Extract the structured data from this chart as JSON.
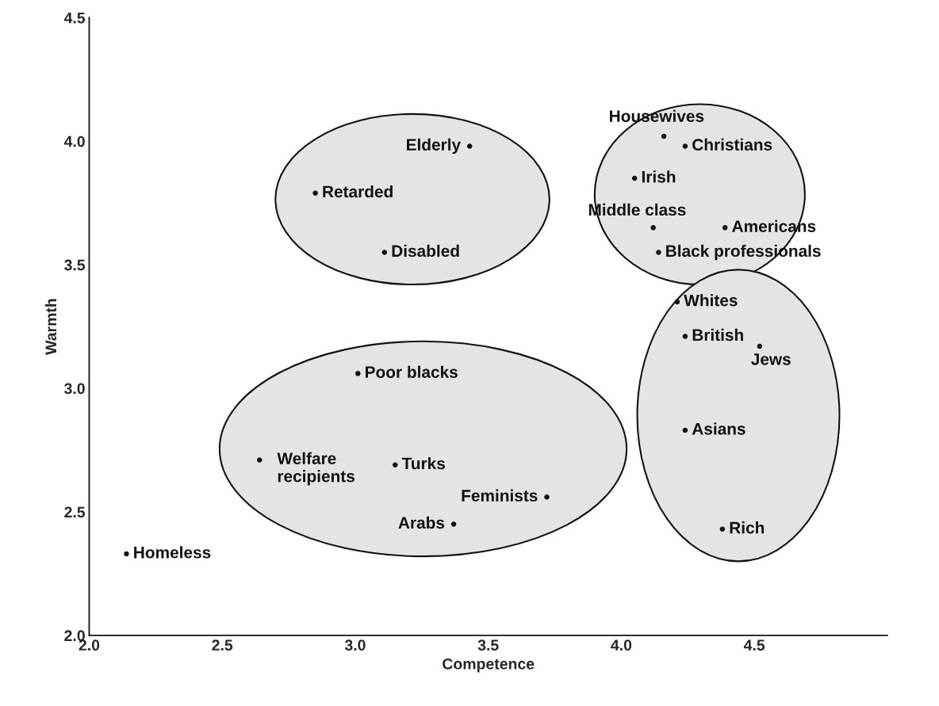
{
  "chart_data": {
    "type": "scatter",
    "xlabel": "Competence",
    "ylabel": "Warmth",
    "xlim": [
      2.0,
      5.0
    ],
    "xticks": [
      {
        "value": 2,
        "label": "2.0"
      },
      2.5,
      {
        "value": 3,
        "label": "3.0"
      },
      3.5,
      {
        "value": 4,
        "label": "4.0"
      },
      4.5
    ],
    "ylim": [
      2.0,
      4.5
    ],
    "yticks": [
      {
        "value": 2,
        "label": "2.0"
      },
      2.5,
      {
        "value": 3,
        "label": "3.0"
      },
      3.5,
      {
        "value": 4,
        "label": "4.0"
      },
      4.5
    ],
    "grid": false,
    "marker": "circle",
    "series": [
      {
        "color": "#111111",
        "x": [
          3.43,
          2.85,
          3.11
        ],
        "values": [
          3.98,
          3.79,
          3.55
        ]
      },
      {
        "color": "#111111",
        "x": [
          4.16,
          4.24,
          4.05,
          4.12,
          4.39,
          4.14
        ],
        "values": [
          4.02,
          3.98,
          3.85,
          3.65,
          3.65,
          3.55
        ]
      },
      {
        "color": "#111111",
        "x": [
          4.21,
          4.24,
          4.52,
          4.24,
          4.38
        ],
        "values": [
          3.35,
          3.21,
          3.17,
          2.83,
          2.43
        ]
      },
      {
        "color": "#111111",
        "x": [
          3.01,
          2.64,
          3.15,
          3.72,
          3.37
        ],
        "values": [
          3.06,
          2.71,
          2.69,
          2.56,
          2.45
        ]
      },
      {
        "color": "#111111",
        "x": [
          2.14
        ],
        "values": [
          2.33
        ]
      }
    ],
    "annotations": [
      {
        "text": "Elderly",
        "x": 3.43,
        "y": 3.98
      },
      {
        "text": "Retarded",
        "x": 2.85,
        "y": 3.79
      },
      {
        "text": "Disabled",
        "x": 3.11,
        "y": 3.55
      },
      {
        "text": "Housewives",
        "x": 4.16,
        "y": 4.02
      },
      {
        "text": "Christians",
        "x": 4.24,
        "y": 3.98
      },
      {
        "text": "Irish",
        "x": 4.05,
        "y": 3.85
      },
      {
        "text": "Middle class",
        "x": 4.12,
        "y": 3.65
      },
      {
        "text": "Americans",
        "x": 4.39,
        "y": 3.65
      },
      {
        "text": "Black professionals",
        "x": 4.14,
        "y": 3.55
      },
      {
        "text": "Whites",
        "x": 4.21,
        "y": 3.35
      },
      {
        "text": "British",
        "x": 4.24,
        "y": 3.21
      },
      {
        "text": "Jews",
        "x": 4.52,
        "y": 3.17
      },
      {
        "text": "Asians",
        "x": 4.24,
        "y": 2.83
      },
      {
        "text": "Rich",
        "x": 4.38,
        "y": 2.43
      },
      {
        "text": "Poor blacks",
        "x": 3.01,
        "y": 3.06
      },
      {
        "text": "Welfare\nrecipients",
        "x": 2.64,
        "y": 2.71
      },
      {
        "text": "Turks",
        "x": 3.15,
        "y": 2.69
      },
      {
        "text": "Feminists",
        "x": 3.72,
        "y": 2.56
      },
      {
        "text": "Arabs",
        "x": 3.37,
        "y": 2.45
      },
      {
        "text": "Homeless",
        "x": 2.14,
        "y": 2.33
      }
    ]
  }
}
